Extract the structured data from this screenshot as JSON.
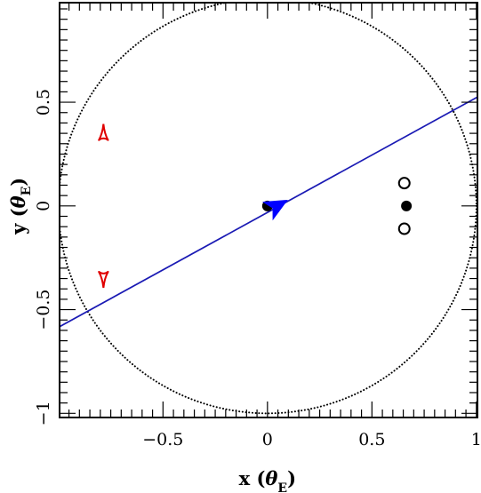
{
  "chart_data": {
    "type": "scatter",
    "xlim": [
      -0.995,
      1.005
    ],
    "ylim": [
      -1.02,
      0.98
    ],
    "x_ticks": [
      -0.5,
      0,
      0.5,
      1
    ],
    "x_tick_labels": [
      "−0.5",
      "0",
      "0.5",
      "1"
    ],
    "y_ticks": [
      -1,
      -0.5,
      0,
      0.5
    ],
    "y_tick_labels": [
      "−1",
      "−0.5",
      "0",
      "0.5"
    ],
    "xlabel": {
      "prefix": "x (",
      "symbol": "θ",
      "sub": "E",
      "suffix": ")"
    },
    "ylabel": {
      "prefix": "y (",
      "symbol": "θ",
      "sub": "E",
      "suffix": ")"
    },
    "grid": false,
    "einstein_ring": {
      "center": [
        0,
        0
      ],
      "radius": 1,
      "style": "dotted",
      "color": "#000000"
    },
    "source_trajectory": {
      "points": [
        [
          -1.0,
          -0.585
        ],
        [
          1.005,
          0.525
        ]
      ],
      "color": "#1a1ab4"
    },
    "lens_masses": [
      {
        "x": 0.0,
        "y": 0.0,
        "filled": true
      },
      {
        "x": 0.665,
        "y": 0.0,
        "filled": true
      }
    ],
    "open_markers": [
      {
        "x": 0.655,
        "y": 0.11
      },
      {
        "x": 0.655,
        "y": -0.11
      }
    ],
    "caustics": [
      {
        "x": -0.785,
        "y": 0.345,
        "size": 0.05,
        "rotation": 0,
        "color": "#e00000"
      },
      {
        "x": -0.785,
        "y": -0.345,
        "size": 0.05,
        "rotation": 180,
        "color": "#e00000"
      },
      {
        "x": 0.015,
        "y": 0.0,
        "size": 0.04,
        "rotation": 90,
        "color": "#e00000"
      }
    ],
    "source_arrow": {
      "x": 0.045,
      "y": 0.0,
      "direction_deg": 29,
      "color": "#0000ff"
    },
    "colors": {
      "trajectory": "#1a1ab4",
      "caustic": "#e00000",
      "arrow": "#0000ff",
      "axes": "#000000"
    }
  }
}
